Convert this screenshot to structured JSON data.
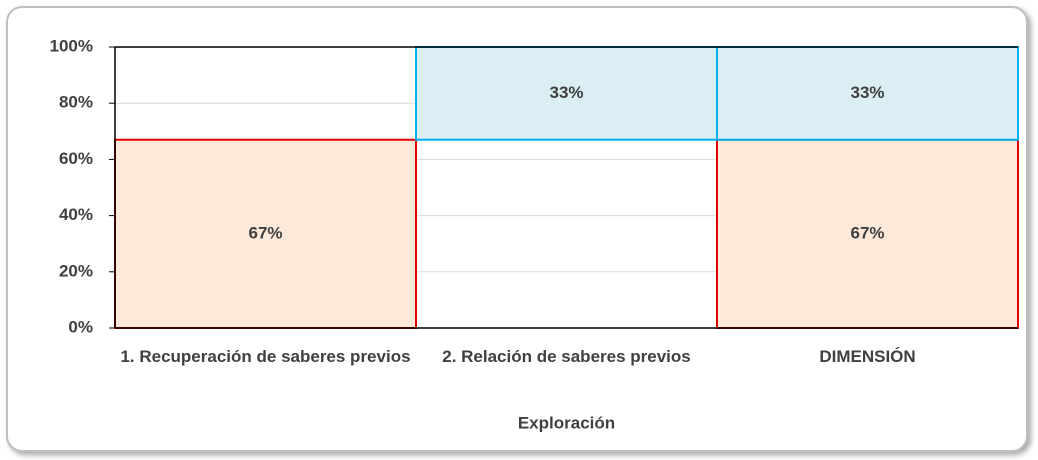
{
  "chart_data": {
    "type": "bar",
    "stacked": true,
    "categories": [
      "1. Recuperación de saberes previos",
      "2. Relación de saberes previos",
      "DIMENSIÓN"
    ],
    "xlabel": "Exploración",
    "series": [
      {
        "color": "#fde9d9",
        "border": "#e00000",
        "values": [
          67,
          null,
          67
        ],
        "value_labels": [
          "67%",
          null,
          "67%"
        ]
      },
      {
        "color": "none",
        "border": "none",
        "values": [
          null,
          67,
          null
        ]
      },
      {
        "color": "#daeef3",
        "border": "#00b0f0",
        "values": [
          null,
          33,
          33
        ],
        "value_labels": [
          null,
          "33%",
          "33%"
        ]
      }
    ],
    "ylim": [
      0,
      100
    ],
    "yticks": [
      {
        "value": 0,
        "label": "0%"
      },
      {
        "value": 20,
        "label": "20%"
      },
      {
        "value": 40,
        "label": "40%"
      },
      {
        "value": 60,
        "label": "60%"
      },
      {
        "value": 80,
        "label": "80%"
      },
      {
        "value": 100,
        "label": "100%"
      }
    ],
    "grid": true
  }
}
